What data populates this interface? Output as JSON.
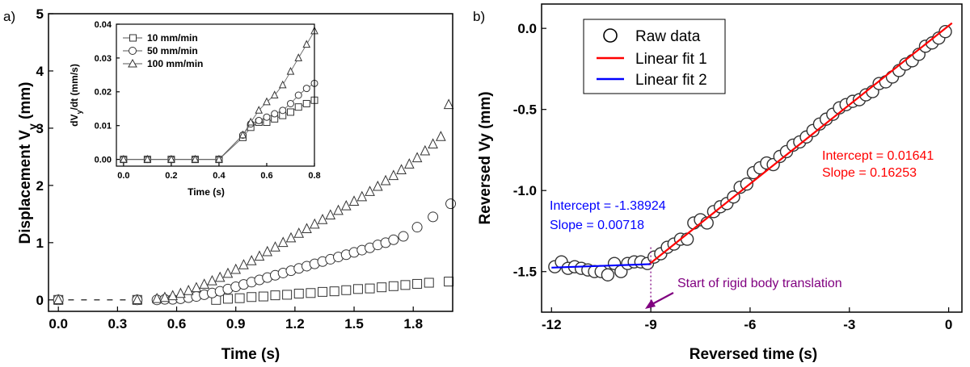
{
  "panel_a_label": "a)",
  "panel_b_label": "b)",
  "chart_data": [
    {
      "id": "main_a",
      "type": "scatter",
      "title": "",
      "xlabel": "Time (s)",
      "ylabel_main": "Displacement V",
      "ylabel_sub": "y",
      "ylabel_unit": " (mm)",
      "xlim": [
        -0.05,
        2.0
      ],
      "ylim": [
        -0.2,
        5.0
      ],
      "xticks": [
        0.0,
        0.3,
        0.6,
        0.9,
        1.2,
        1.5,
        1.8
      ],
      "xtick_labels": [
        "0.0",
        "0.3",
        "0.6",
        "0.9",
        "1.2",
        "1.5",
        "1.8"
      ],
      "yticks": [
        0,
        1,
        2,
        3,
        4,
        5
      ],
      "ytick_labels": [
        "0",
        "1",
        "2",
        "3",
        "4",
        "5"
      ],
      "series": [
        {
          "name": "10 mm/min",
          "marker": "square",
          "x": [
            0.0,
            0.4,
            0.8,
            0.86,
            0.92,
            0.98,
            1.04,
            1.1,
            1.16,
            1.22,
            1.28,
            1.34,
            1.4,
            1.46,
            1.52,
            1.58,
            1.64,
            1.7,
            1.76,
            1.82,
            1.88,
            1.98
          ],
          "y": [
            0.0,
            0.0,
            0.0,
            0.02,
            0.03,
            0.05,
            0.06,
            0.08,
            0.09,
            0.11,
            0.12,
            0.14,
            0.15,
            0.17,
            0.19,
            0.2,
            0.22,
            0.24,
            0.26,
            0.28,
            0.3,
            0.32
          ]
        },
        {
          "name": "50 mm/min",
          "marker": "circle",
          "x": [
            0.0,
            0.4,
            0.5,
            0.54,
            0.58,
            0.62,
            0.66,
            0.7,
            0.74,
            0.78,
            0.82,
            0.86,
            0.9,
            0.94,
            0.98,
            1.02,
            1.06,
            1.1,
            1.14,
            1.18,
            1.22,
            1.26,
            1.3,
            1.34,
            1.38,
            1.42,
            1.46,
            1.5,
            1.54,
            1.58,
            1.62,
            1.66,
            1.7,
            1.75,
            1.82,
            1.9,
            1.99
          ],
          "y": [
            0.0,
            0.0,
            0.0,
            0.01,
            0.01,
            0.02,
            0.04,
            0.06,
            0.09,
            0.12,
            0.15,
            0.19,
            0.23,
            0.27,
            0.31,
            0.35,
            0.39,
            0.43,
            0.47,
            0.51,
            0.55,
            0.59,
            0.63,
            0.67,
            0.71,
            0.75,
            0.79,
            0.83,
            0.87,
            0.91,
            0.96,
            1.0,
            1.05,
            1.11,
            1.27,
            1.45,
            1.68
          ]
        },
        {
          "name": "100 mm/min",
          "marker": "triangle",
          "x": [
            0.0,
            0.4,
            0.5,
            0.54,
            0.58,
            0.62,
            0.66,
            0.7,
            0.74,
            0.78,
            0.82,
            0.86,
            0.9,
            0.94,
            0.98,
            1.02,
            1.06,
            1.1,
            1.14,
            1.18,
            1.22,
            1.26,
            1.3,
            1.34,
            1.38,
            1.42,
            1.46,
            1.5,
            1.54,
            1.58,
            1.62,
            1.66,
            1.7,
            1.74,
            1.78,
            1.82,
            1.86,
            1.9,
            1.94,
            1.98
          ],
          "y": [
            0.0,
            0.0,
            0.02,
            0.04,
            0.07,
            0.11,
            0.16,
            0.21,
            0.27,
            0.33,
            0.39,
            0.46,
            0.53,
            0.61,
            0.68,
            0.76,
            0.84,
            0.92,
            1.0,
            1.08,
            1.16,
            1.24,
            1.32,
            1.4,
            1.48,
            1.56,
            1.64,
            1.72,
            1.8,
            1.89,
            1.98,
            2.08,
            2.17,
            2.27,
            2.37,
            2.48,
            2.6,
            2.72,
            2.85,
            3.41
          ]
        }
      ],
      "reference_line": {
        "x": [
          0.05,
          0.42
        ],
        "y": [
          0.0,
          0.0
        ],
        "style": "dashed"
      }
    },
    {
      "id": "inset_a",
      "type": "line",
      "xlabel": "Time (s)",
      "ylabel_main": "dV",
      "ylabel_sub": "y",
      "ylabel_unit": "/dt (mm/s)",
      "xlim": [
        -0.03,
        0.8
      ],
      "ylim": [
        -0.002,
        0.04
      ],
      "xticks": [
        0.0,
        0.2,
        0.4,
        0.6,
        0.8
      ],
      "xtick_labels": [
        "0.0",
        "0.2",
        "0.4",
        "0.6",
        "0.8"
      ],
      "yticks": [
        0.0,
        0.01,
        0.02,
        0.03,
        0.04
      ],
      "ytick_labels": [
        "0.00",
        "0.01",
        "0.02",
        "0.03",
        "0.04"
      ],
      "legend": {
        "placement": "top-left"
      },
      "series": [
        {
          "name": "10 mm/min",
          "marker": "square",
          "x": [
            0.0,
            0.1,
            0.2,
            0.3,
            0.4,
            0.5,
            0.533,
            0.567,
            0.6,
            0.633,
            0.667,
            0.7,
            0.733,
            0.767,
            0.8
          ],
          "y": [
            0.0,
            0.0,
            0.0,
            0.0,
            0.0,
            0.0065,
            0.0095,
            0.011,
            0.011,
            0.012,
            0.013,
            0.014,
            0.0155,
            0.0165,
            0.0175
          ]
        },
        {
          "name": "50 mm/min",
          "marker": "circle",
          "x": [
            0.0,
            0.1,
            0.2,
            0.3,
            0.4,
            0.5,
            0.533,
            0.567,
            0.6,
            0.633,
            0.667,
            0.7,
            0.733,
            0.767,
            0.8
          ],
          "y": [
            0.0,
            0.0,
            0.0,
            0.0,
            0.0,
            0.0072,
            0.0105,
            0.0115,
            0.0125,
            0.0135,
            0.0145,
            0.0165,
            0.019,
            0.021,
            0.0225
          ]
        },
        {
          "name": "100 mm/min",
          "marker": "triangle",
          "x": [
            0.0,
            0.1,
            0.2,
            0.3,
            0.4,
            0.5,
            0.533,
            0.567,
            0.6,
            0.633,
            0.667,
            0.7,
            0.733,
            0.767,
            0.8
          ],
          "y": [
            0.0,
            0.0,
            0.0,
            0.0,
            0.0,
            0.0072,
            0.011,
            0.0145,
            0.017,
            0.019,
            0.022,
            0.026,
            0.03,
            0.034,
            0.038
          ]
        }
      ]
    },
    {
      "id": "main_b",
      "type": "scatter",
      "xlabel": "Reversed time (s)",
      "ylabel": "Reversed Vy (mm)",
      "xlim": [
        -12.3,
        0.4
      ],
      "ylim": [
        -1.75,
        0.15
      ],
      "xticks": [
        -12,
        -9,
        -6,
        -3,
        0
      ],
      "xtick_labels": [
        "-12",
        "-9",
        "-6",
        "-3",
        "0"
      ],
      "yticks": [
        0.0,
        -0.5,
        -1.0,
        -1.5
      ],
      "ytick_labels": [
        "0.0",
        "-0.5",
        "-1.0",
        "-1.5"
      ],
      "legend": {
        "placement": "top-left",
        "entries": [
          "Raw data",
          "Linear fit 1",
          "Linear fit 2"
        ]
      },
      "series": [
        {
          "name": "Raw data",
          "marker": "circle",
          "x": [
            -11.9,
            -11.7,
            -11.5,
            -11.3,
            -11.1,
            -10.9,
            -10.7,
            -10.5,
            -10.3,
            -10.1,
            -9.9,
            -9.7,
            -9.5,
            -9.3,
            -9.1,
            -8.9,
            -8.7,
            -8.5,
            -8.3,
            -8.1,
            -7.9,
            -7.7,
            -7.5,
            -7.3,
            -7.1,
            -6.9,
            -6.7,
            -6.5,
            -6.3,
            -6.1,
            -5.9,
            -5.7,
            -5.5,
            -5.3,
            -5.1,
            -4.9,
            -4.7,
            -4.5,
            -4.3,
            -4.1,
            -3.9,
            -3.7,
            -3.5,
            -3.3,
            -3.1,
            -2.9,
            -2.7,
            -2.5,
            -2.3,
            -2.1,
            -1.9,
            -1.7,
            -1.5,
            -1.3,
            -1.1,
            -0.9,
            -0.7,
            -0.5,
            -0.3,
            -0.1
          ],
          "y": [
            -1.47,
            -1.44,
            -1.48,
            -1.47,
            -1.48,
            -1.49,
            -1.5,
            -1.5,
            -1.52,
            -1.45,
            -1.5,
            -1.45,
            -1.44,
            -1.44,
            -1.45,
            -1.41,
            -1.39,
            -1.35,
            -1.33,
            -1.3,
            -1.3,
            -1.2,
            -1.18,
            -1.2,
            -1.13,
            -1.1,
            -1.08,
            -1.04,
            -0.98,
            -0.96,
            -0.89,
            -0.86,
            -0.83,
            -0.84,
            -0.79,
            -0.76,
            -0.72,
            -0.7,
            -0.67,
            -0.63,
            -0.59,
            -0.56,
            -0.53,
            -0.49,
            -0.47,
            -0.45,
            -0.44,
            -0.41,
            -0.39,
            -0.34,
            -0.33,
            -0.3,
            -0.26,
            -0.22,
            -0.2,
            -0.16,
            -0.11,
            -0.09,
            -0.06,
            -0.02
          ]
        },
        {
          "name": "Linear fit 1",
          "color": "#ff0000",
          "x": [
            -9.07,
            0.1
          ],
          "y": [
            -1.4576,
            0.0327
          ],
          "annotation": [
            "Intercept = 0.01641",
            "Slope = 0.16253"
          ]
        },
        {
          "name": "Linear fit 2",
          "color": "#0000ff",
          "x": [
            -12.0,
            -9.0
          ],
          "y": [
            -1.4754,
            -1.4538
          ],
          "annotation": [
            "Intercept = -1.38924",
            "Slope = 0.00718"
          ]
        }
      ],
      "vline": {
        "x": -9.0,
        "color": "#8b1a8b",
        "style": "dotted"
      },
      "arrow_annotation": {
        "text": "Start of rigid body translation",
        "color": "#800080",
        "points_to_x": -9.0
      }
    }
  ]
}
